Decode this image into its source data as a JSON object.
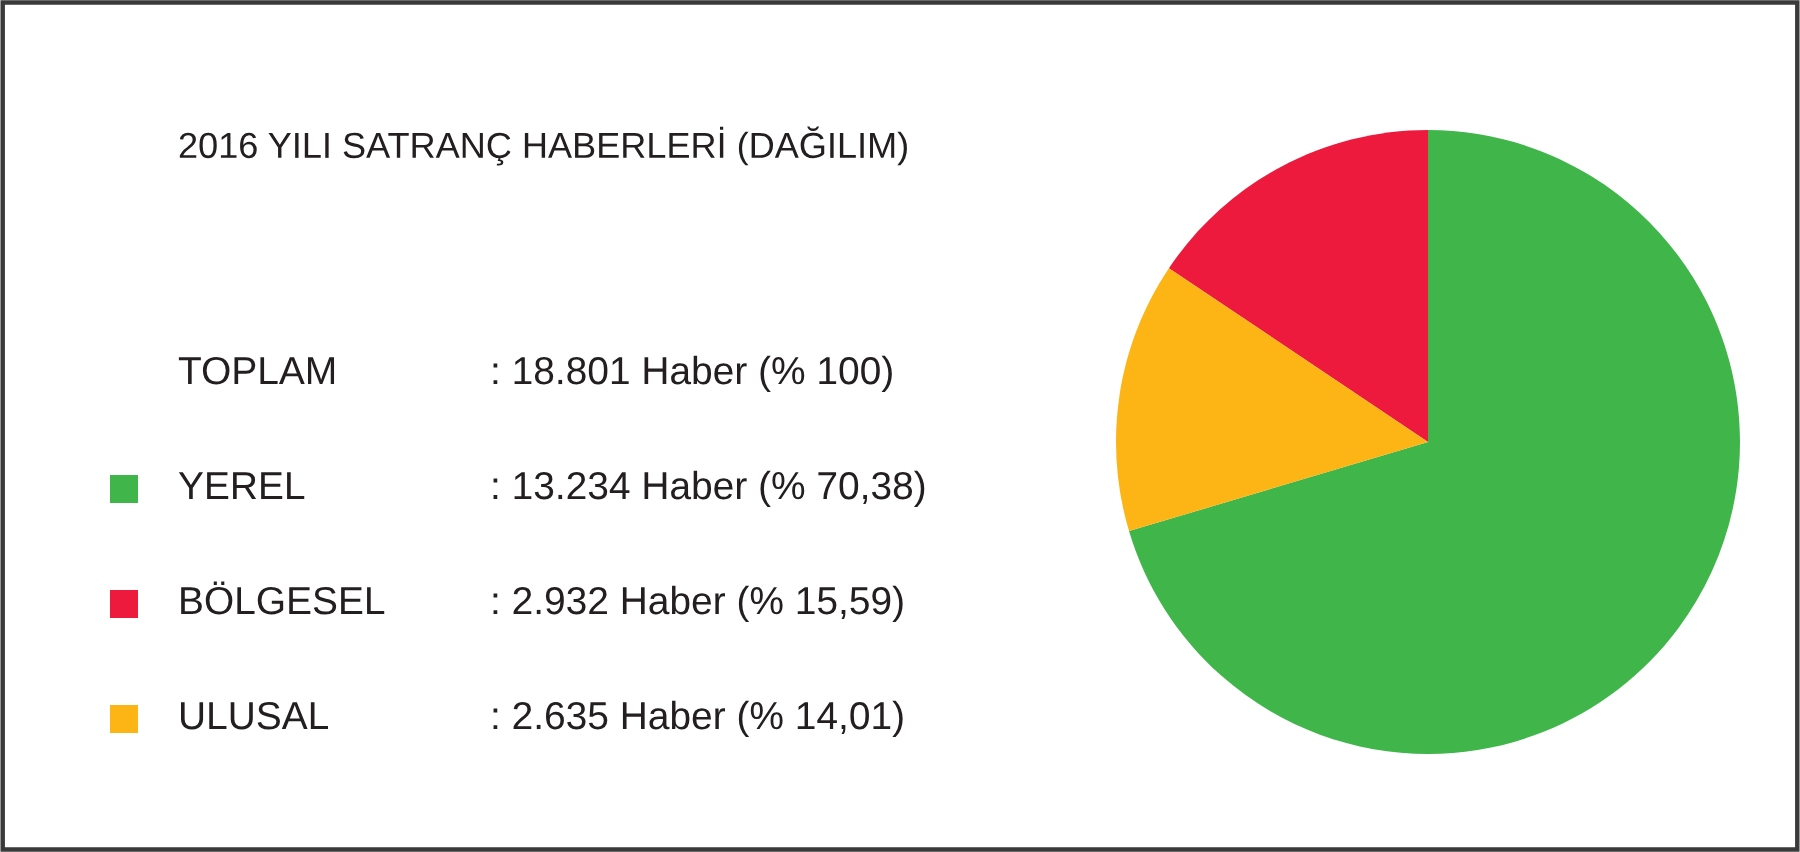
{
  "chart_data": {
    "type": "pie",
    "title": "2016 YILI SATRANÇ HABERLERİ (DAĞILIM)",
    "categories": [
      "YEREL",
      "BÖLGESEL",
      "ULUSAL"
    ],
    "values": [
      13234,
      2932,
      2635
    ],
    "colors": [
      "#3fb54a",
      "#ed1a3d",
      "#fdb515"
    ],
    "value_labels": [
      ": 13.234 Haber (% 70,38)",
      ": 2.932 Haber (% 15,59)",
      ": 2.635 Haber (% 14,01)"
    ],
    "annotations": [
      "TOPLAM",
      ": 18.801 Haber (% 100)"
    ],
    "legend": "left"
  }
}
